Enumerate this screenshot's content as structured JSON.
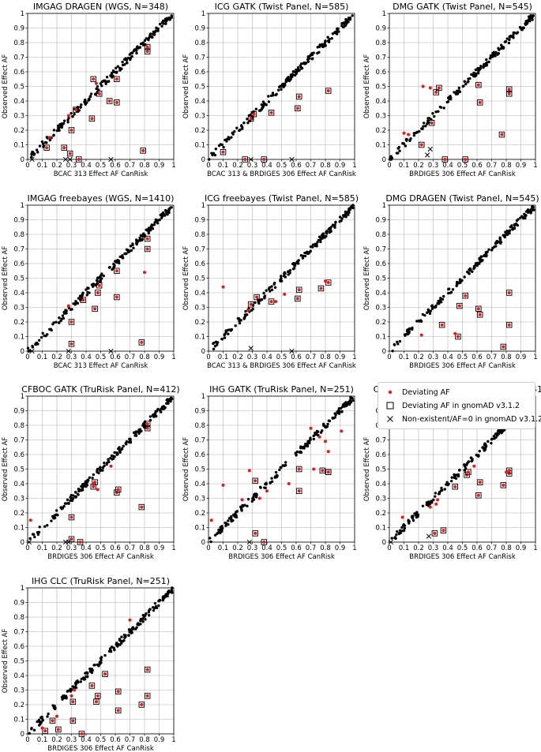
{
  "legend": {
    "deviating": "Deviating AF",
    "gnomad": "Deviating AF in gnomAD v3.1.2",
    "nonexistent": "Non-existent/AF=0 in gnomAD v3.1.2"
  },
  "colors": {
    "deviating": "#e41a1c",
    "point": "#000000",
    "grid": "#b0b0b0"
  },
  "ylabel": "Observed Effect AF",
  "ticks": [
    "0",
    "0.1",
    "0.2",
    "0.3",
    "0.4",
    "0.5",
    "0.6",
    "0.7",
    "0.8",
    "0.9",
    "1"
  ],
  "chart_data": [
    {
      "type": "scatter",
      "title": "IMGAG DRAGEN (WGS, N=348)",
      "xlabel": "BCAC 313 Effect AF CanRisk",
      "ylabel": "Observed Effect AF",
      "xlim": [
        0,
        1
      ],
      "ylim": [
        0,
        1
      ],
      "deviating_gnomad": [
        [
          0.13,
          0.08
        ],
        [
          0.25,
          0.08
        ],
        [
          0.29,
          0.04
        ],
        [
          0.3,
          0.2
        ],
        [
          0.33,
          0.34
        ],
        [
          0.35,
          0.0
        ],
        [
          0.44,
          0.28
        ],
        [
          0.45,
          0.55
        ],
        [
          0.49,
          0.45
        ],
        [
          0.56,
          0.4
        ],
        [
          0.61,
          0.39
        ],
        [
          0.61,
          0.55
        ],
        [
          0.79,
          0.06
        ],
        [
          0.82,
          0.74
        ],
        [
          0.82,
          0.77
        ]
      ],
      "deviating": [
        [
          0.15,
          0.15
        ],
        [
          0.28,
          0.3
        ],
        [
          0.47,
          0.52
        ]
      ],
      "nonexistent": [
        [
          0.03,
          0.0
        ],
        [
          0.26,
          0.0
        ],
        [
          0.29,
          0.0
        ],
        [
          0.57,
          0.0
        ]
      ]
    },
    {
      "type": "scatter",
      "title": "ICG GATK (Twist Panel, N=585)",
      "xlabel": "BCAC 313 & BRDIGES 306 Effect AF CanRisk",
      "ylabel": "Observed Effect AF",
      "xlim": [
        0,
        1
      ],
      "ylim": [
        0,
        1
      ],
      "deviating_gnomad": [
        [
          0.1,
          0.05
        ],
        [
          0.25,
          0.0
        ],
        [
          0.29,
          0.28
        ],
        [
          0.31,
          0.31
        ],
        [
          0.38,
          0.0
        ],
        [
          0.43,
          0.32
        ],
        [
          0.61,
          0.35
        ],
        [
          0.62,
          0.43
        ],
        [
          0.82,
          0.47
        ]
      ],
      "deviating": [],
      "nonexistent": [
        [
          0.29,
          0.0
        ],
        [
          0.57,
          0.0
        ]
      ]
    },
    {
      "type": "scatter",
      "title": "DMG GATK (Twist Panel, N=545)",
      "xlabel": "BRDIGES 306 Effect AF CanRisk",
      "ylabel": "Observed Effect AF",
      "xlim": [
        0,
        1
      ],
      "ylim": [
        0,
        1
      ],
      "deviating_gnomad": [
        [
          0.22,
          0.1
        ],
        [
          0.29,
          0.25
        ],
        [
          0.32,
          0.46
        ],
        [
          0.34,
          0.49
        ],
        [
          0.38,
          0.0
        ],
        [
          0.52,
          0.0
        ],
        [
          0.61,
          0.51
        ],
        [
          0.62,
          0.39
        ],
        [
          0.77,
          0.17
        ],
        [
          0.82,
          0.45
        ],
        [
          0.82,
          0.48
        ]
      ],
      "deviating": [
        [
          0.1,
          0.18
        ],
        [
          0.13,
          0.17
        ],
        [
          0.23,
          0.5
        ],
        [
          0.28,
          0.49
        ]
      ],
      "nonexistent": [
        [
          0.26,
          0.03
        ],
        [
          0.28,
          0.07
        ]
      ]
    },
    {
      "type": "scatter",
      "title": "IMGAG freebayes (WGS, N=1410)",
      "xlabel": "BCAC 313 Effect AF CanRisk",
      "ylabel": "Observed Effect AF",
      "xlim": [
        0,
        1
      ],
      "ylim": [
        0,
        1
      ],
      "deviating_gnomad": [
        [
          0.3,
          0.2
        ],
        [
          0.3,
          0.05
        ],
        [
          0.38,
          0.35
        ],
        [
          0.46,
          0.29
        ],
        [
          0.48,
          0.4
        ],
        [
          0.49,
          0.45
        ],
        [
          0.61,
          0.37
        ],
        [
          0.61,
          0.55
        ],
        [
          0.78,
          0.06
        ],
        [
          0.82,
          0.7
        ],
        [
          0.82,
          0.77
        ]
      ],
      "deviating": [
        [
          0.28,
          0.31
        ],
        [
          0.8,
          0.54
        ]
      ],
      "nonexistent": [
        [
          0.03,
          0.0
        ],
        [
          0.28,
          0.0
        ],
        [
          0.57,
          0.0
        ]
      ]
    },
    {
      "type": "scatter",
      "title": "ICG freebayes (Twist Panel, N=585)",
      "xlabel": "BCAC 313 & BRDIGES 306 Effect AF CanRisk",
      "ylabel": "Observed Effect AF",
      "xlim": [
        0,
        1
      ],
      "ylim": [
        0,
        1
      ],
      "deviating_gnomad": [
        [
          0.29,
          0.32
        ],
        [
          0.33,
          0.37
        ],
        [
          0.43,
          0.34
        ],
        [
          0.61,
          0.36
        ],
        [
          0.62,
          0.42
        ],
        [
          0.77,
          0.43
        ],
        [
          0.82,
          0.47
        ]
      ],
      "deviating": [
        [
          0.1,
          0.44
        ],
        [
          0.27,
          0.28
        ],
        [
          0.46,
          0.34
        ],
        [
          0.52,
          0.39
        ],
        [
          0.8,
          0.48
        ]
      ],
      "nonexistent": [
        [
          0.29,
          0.02
        ],
        [
          0.57,
          0.0
        ]
      ]
    },
    {
      "type": "scatter",
      "title": "DMG DRAGEN (Twist Panel, N=545)",
      "xlabel": "BRDIGES 306 Effect AF CanRisk",
      "ylabel": "Observed Effect AF",
      "xlim": [
        0,
        1
      ],
      "ylim": [
        0,
        1
      ],
      "deviating_gnomad": [
        [
          0.36,
          0.18
        ],
        [
          0.47,
          0.1
        ],
        [
          0.48,
          0.31
        ],
        [
          0.52,
          0.38
        ],
        [
          0.61,
          0.29
        ],
        [
          0.62,
          0.25
        ],
        [
          0.78,
          0.03
        ],
        [
          0.82,
          0.18
        ],
        [
          0.82,
          0.4
        ]
      ],
      "deviating": [
        [
          0.22,
          0.11
        ],
        [
          0.45,
          0.12
        ]
      ],
      "nonexistent": []
    },
    {
      "type": "scatter",
      "title": "CFBOC GATK (TruRisk Panel, N=412)",
      "xlabel": "BRDIGES 306 Effect AF CanRisk",
      "ylabel": "Observed Effect AF",
      "xlim": [
        0,
        1
      ],
      "ylim": [
        0,
        1
      ],
      "deviating_gnomad": [
        [
          0.3,
          0.02
        ],
        [
          0.3,
          0.17
        ],
        [
          0.36,
          0.0
        ],
        [
          0.45,
          0.38
        ],
        [
          0.46,
          0.41
        ],
        [
          0.61,
          0.34
        ],
        [
          0.62,
          0.36
        ],
        [
          0.78,
          0.24
        ],
        [
          0.82,
          0.78
        ],
        [
          0.82,
          0.81
        ]
      ],
      "deviating": [
        [
          0.02,
          0.15
        ],
        [
          0.45,
          0.4
        ],
        [
          0.48,
          0.36
        ],
        [
          0.57,
          0.52
        ]
      ],
      "nonexistent": [
        [
          0.01,
          0.0
        ],
        [
          0.26,
          0.0
        ],
        [
          0.28,
          0.0
        ]
      ]
    },
    {
      "type": "scatter",
      "title": "IHG GATK (TruRisk Panel, N=251)",
      "xlabel": "BRDIGES 306 Effect AF CanRisk",
      "ylabel": "Observed Effect AF",
      "xlim": [
        0,
        1
      ],
      "ylim": [
        0,
        1
      ],
      "deviating_gnomad": [
        [
          0.32,
          0.42
        ],
        [
          0.32,
          0.06
        ],
        [
          0.38,
          0.0
        ],
        [
          0.62,
          0.35
        ],
        [
          0.62,
          0.5
        ],
        [
          0.78,
          0.49
        ],
        [
          0.82,
          0.48
        ],
        [
          0.82,
          0.48
        ]
      ],
      "deviating": [
        [
          0.02,
          0.15
        ],
        [
          0.1,
          0.39
        ],
        [
          0.23,
          0.29
        ],
        [
          0.28,
          0.49
        ],
        [
          0.35,
          0.3
        ],
        [
          0.4,
          0.35
        ],
        [
          0.55,
          0.4
        ],
        [
          0.7,
          0.78
        ],
        [
          0.72,
          0.5
        ],
        [
          0.76,
          0.72
        ],
        [
          0.8,
          0.69
        ],
        [
          0.82,
          0.62
        ],
        [
          0.91,
          0.76
        ]
      ],
      "nonexistent": [
        [
          0.28,
          0.0
        ]
      ]
    },
    {
      "type": "scatter",
      "title": "CFBOC freebayes (TruRisk Panel, N=412)",
      "xlabel": "BRDIGES 306 Effect AF CanRisk",
      "ylabel": "Observed Effect AF",
      "xlim": [
        0,
        1
      ],
      "ylim": [
        0,
        1
      ],
      "deviating_gnomad": [
        [
          0.31,
          0.06
        ],
        [
          0.37,
          0.08
        ],
        [
          0.45,
          0.38
        ],
        [
          0.53,
          0.46
        ],
        [
          0.54,
          0.48
        ],
        [
          0.61,
          0.32
        ],
        [
          0.62,
          0.41
        ],
        [
          0.78,
          0.39
        ],
        [
          0.82,
          0.47
        ],
        [
          0.82,
          0.49
        ]
      ],
      "deviating": [
        [
          0.09,
          0.17
        ],
        [
          0.28,
          0.24
        ],
        [
          0.32,
          0.26
        ],
        [
          0.33,
          0.29
        ],
        [
          0.58,
          0.52
        ],
        [
          0.8,
          0.48
        ]
      ],
      "nonexistent": [
        [
          0.01,
          0.0
        ],
        [
          0.27,
          0.04
        ]
      ]
    },
    {
      "type": "scatter",
      "title": "IHG CLC (TruRisk Panel, N=251)",
      "xlabel": "BRDIGES 306 Effect AF CanRisk",
      "ylabel": "Observed Effect AF",
      "xlim": [
        0,
        1
      ],
      "ylim": [
        0,
        1
      ],
      "deviating_gnomad": [
        [
          0.12,
          0.02
        ],
        [
          0.17,
          0.09
        ],
        [
          0.21,
          0.03
        ],
        [
          0.31,
          0.09
        ],
        [
          0.31,
          0.22
        ],
        [
          0.37,
          0.0
        ],
        [
          0.44,
          0.33
        ],
        [
          0.47,
          0.22
        ],
        [
          0.48,
          0.26
        ],
        [
          0.53,
          0.41
        ],
        [
          0.62,
          0.29
        ],
        [
          0.62,
          0.16
        ],
        [
          0.78,
          0.2
        ],
        [
          0.82,
          0.26
        ],
        [
          0.82,
          0.44
        ]
      ],
      "deviating": [
        [
          0.1,
          0.04
        ],
        [
          0.2,
          0.12
        ],
        [
          0.3,
          0.26
        ],
        [
          0.32,
          0.3
        ],
        [
          0.7,
          0.78
        ]
      ],
      "nonexistent": []
    }
  ]
}
